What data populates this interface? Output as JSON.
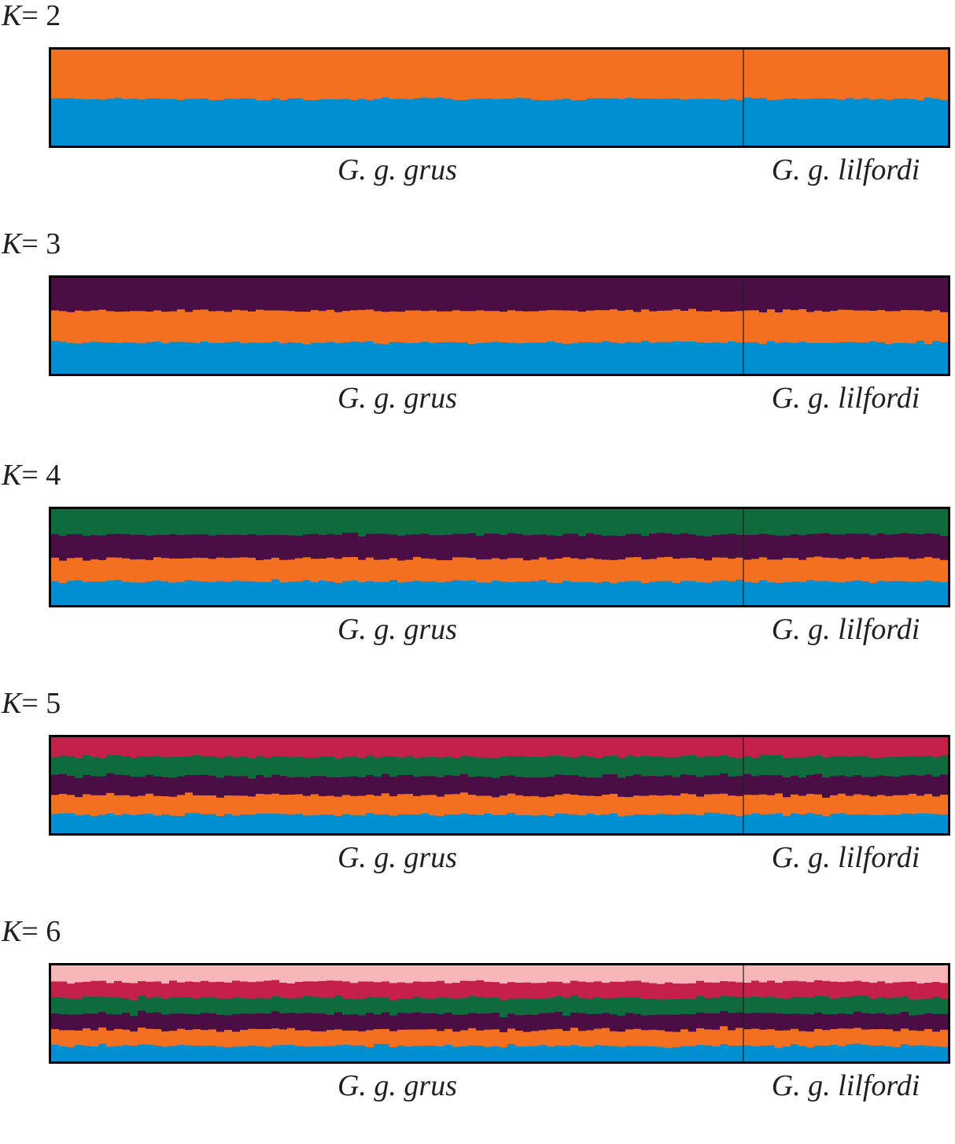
{
  "chart_data": [
    {
      "type": "bar",
      "subtype": "stacked-admixture",
      "k_prefix": "K",
      "k_value": "= 2",
      "groups": [
        {
          "name": "G. g. grus",
          "n": 88
        },
        {
          "name": "G. g. lilfordi",
          "n": 26
        }
      ],
      "series": [
        {
          "color": "#008fd1",
          "mean_proportion": 0.49
        },
        {
          "color": "#f37021",
          "mean_proportion": 0.51
        }
      ],
      "ylim": [
        0,
        1
      ]
    },
    {
      "type": "bar",
      "subtype": "stacked-admixture",
      "k_prefix": "K",
      "k_value": "= 3",
      "groups": [
        {
          "name": "G. g. grus",
          "n": 88
        },
        {
          "name": "G. g. lilfordi",
          "n": 26
        }
      ],
      "series": [
        {
          "color": "#008fd1",
          "mean_proportion": 0.33
        },
        {
          "color": "#f37021",
          "mean_proportion": 0.33
        },
        {
          "color": "#4a0e45",
          "mean_proportion": 0.34
        }
      ],
      "ylim": [
        0,
        1
      ]
    },
    {
      "type": "bar",
      "subtype": "stacked-admixture",
      "k_prefix": "K",
      "k_value": "= 4",
      "groups": [
        {
          "name": "G. g. grus",
          "n": 88
        },
        {
          "name": "G. g. lilfordi",
          "n": 26
        }
      ],
      "series": [
        {
          "color": "#008fd1",
          "mean_proportion": 0.25
        },
        {
          "color": "#f37021",
          "mean_proportion": 0.24
        },
        {
          "color": "#4a0e45",
          "mean_proportion": 0.25
        },
        {
          "color": "#0e6b3c",
          "mean_proportion": 0.26
        }
      ],
      "ylim": [
        0,
        1
      ]
    },
    {
      "type": "bar",
      "subtype": "stacked-admixture",
      "k_prefix": "K",
      "k_value": "= 5",
      "groups": [
        {
          "name": "G. g. grus",
          "n": 88
        },
        {
          "name": "G. g. lilfordi",
          "n": 26
        }
      ],
      "series": [
        {
          "color": "#008fd1",
          "mean_proportion": 0.2
        },
        {
          "color": "#f37021",
          "mean_proportion": 0.2
        },
        {
          "color": "#4a0e45",
          "mean_proportion": 0.2
        },
        {
          "color": "#0e6b3c",
          "mean_proportion": 0.2
        },
        {
          "color": "#c4204a",
          "mean_proportion": 0.2
        }
      ],
      "ylim": [
        0,
        1
      ]
    },
    {
      "type": "bar",
      "subtype": "stacked-admixture",
      "k_prefix": "K",
      "k_value": "= 6",
      "groups": [
        {
          "name": "G. g. grus",
          "n": 88
        },
        {
          "name": "G. g. lilfordi",
          "n": 26
        }
      ],
      "series": [
        {
          "color": "#008fd1",
          "mean_proportion": 0.167
        },
        {
          "color": "#f37021",
          "mean_proportion": 0.167
        },
        {
          "color": "#4a0e45",
          "mean_proportion": 0.166
        },
        {
          "color": "#0e6b3c",
          "mean_proportion": 0.167
        },
        {
          "color": "#c4204a",
          "mean_proportion": 0.166
        },
        {
          "color": "#f7b6b8",
          "mean_proportion": 0.167
        }
      ],
      "ylim": [
        0,
        1
      ]
    }
  ]
}
